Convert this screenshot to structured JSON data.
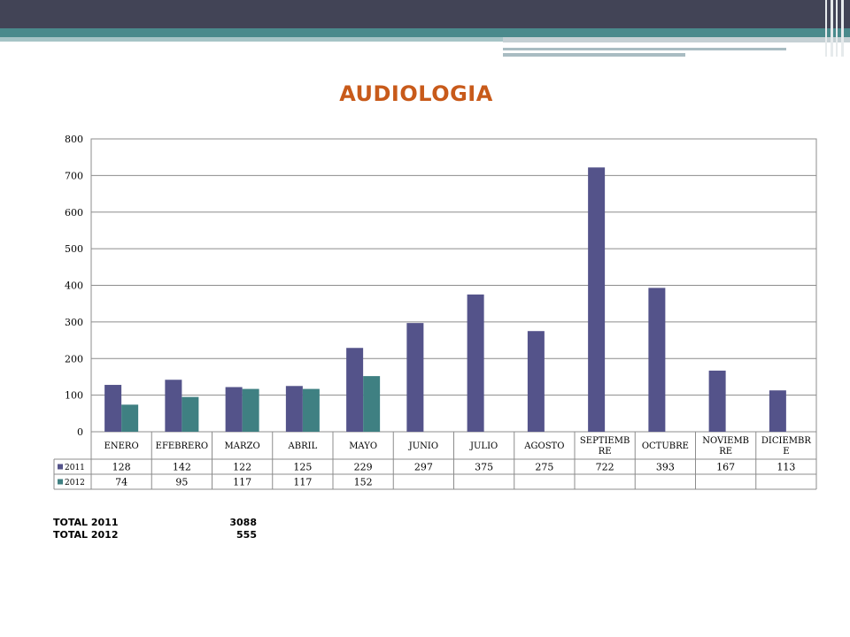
{
  "colors": {
    "series_2011": "#54538a",
    "series_2012": "#3f8082",
    "title": "#c85a1a"
  },
  "chart_data": {
    "type": "bar",
    "title": "AUDIOLOGIA",
    "categories": [
      "ENERO",
      "EFEBRERO",
      "MARZO",
      "ABRIL",
      "MAYO",
      "JUNIO",
      "JULIO",
      "AGOSTO",
      "SEPTIEMB RE",
      "OCTUBRE",
      "NOVIEMB RE",
      "DICIEMBR E"
    ],
    "series": [
      {
        "name": "2011",
        "values": [
          128,
          142,
          122,
          125,
          229,
          297,
          375,
          275,
          722,
          393,
          167,
          113
        ]
      },
      {
        "name": "2012",
        "values": [
          74,
          95,
          117,
          117,
          152,
          null,
          null,
          null,
          null,
          null,
          null,
          null
        ]
      }
    ],
    "ylim": [
      0,
      800
    ],
    "yticks": [
      0,
      100,
      200,
      300,
      400,
      500,
      600,
      700,
      800
    ],
    "grid": true,
    "legend": "data-table"
  },
  "totals": [
    {
      "label": "TOTAL 2011",
      "value": "3088"
    },
    {
      "label": "TOTAL 2012",
      "value": "555"
    }
  ]
}
